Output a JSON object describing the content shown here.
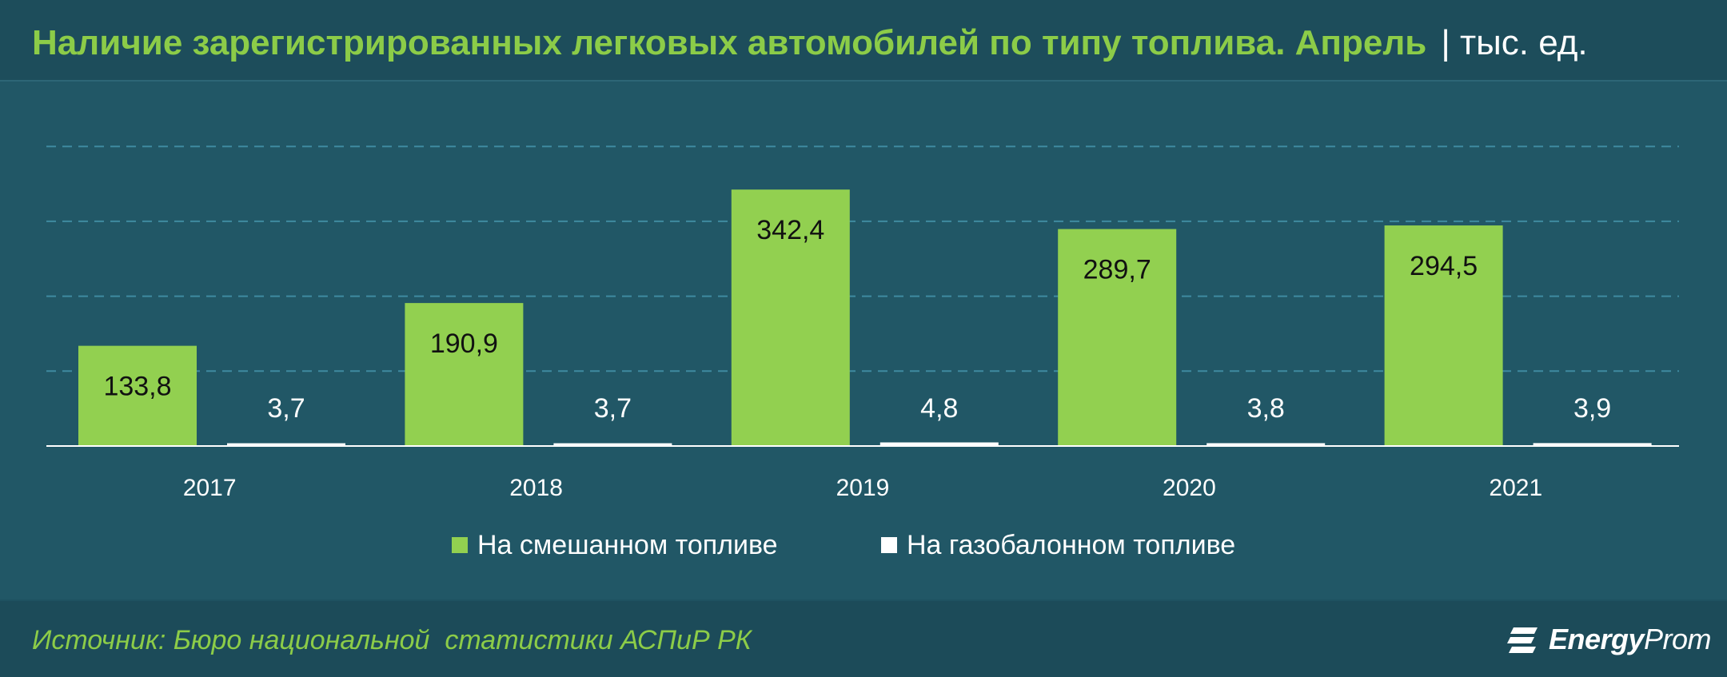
{
  "header": {
    "title": "Наличие зарегистрированных легковых автомобилей по типу топлива.  Апрель",
    "unit": "| тыс. ед."
  },
  "chart_data": {
    "type": "bar",
    "categories": [
      "2017",
      "2018",
      "2019",
      "2020",
      "2021"
    ],
    "series": [
      {
        "name": "На смешанном топливе",
        "color": "#92d050",
        "values": [
          133.8,
          190.9,
          342.4,
          289.7,
          294.5
        ],
        "labels": [
          "133,8",
          "190,9",
          "342,4",
          "289,7",
          "294,5"
        ]
      },
      {
        "name": "На газобалонном топливе",
        "color": "#ffffff",
        "values": [
          3.7,
          3.7,
          4.8,
          3.8,
          3.9
        ],
        "labels": [
          "3,7",
          "3,7",
          "4,8",
          "3,8",
          "3,9"
        ]
      }
    ],
    "ylim": [
      0,
      400
    ],
    "grid": true,
    "legend": "bottom"
  },
  "footer": {
    "source": "Источник: Бюро национальной  статистики АСПиР РК",
    "logo_text_bold": "Energy",
    "logo_text_regular": "Prom"
  }
}
